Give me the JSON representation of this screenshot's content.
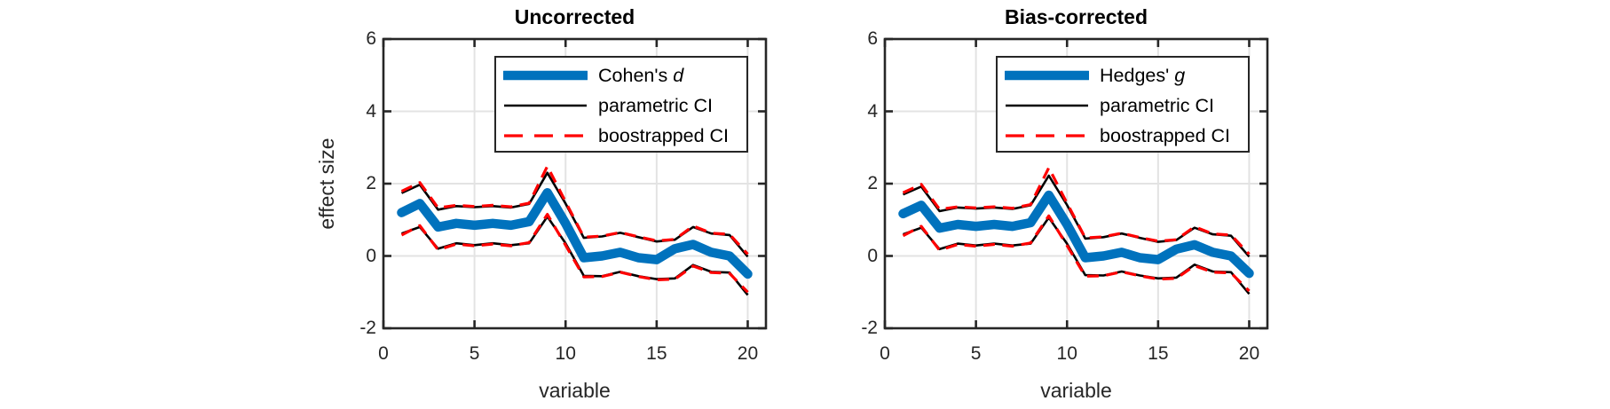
{
  "figure": {
    "colors": {
      "series_main": "#0072BD",
      "series_parametric": "#000000",
      "series_bootstrap": "#FF0000",
      "axis": "#262626",
      "grid": "#E3E3E3",
      "background": "#FFFFFF"
    }
  },
  "chart_data": [
    {
      "type": "line",
      "title": "Uncorrected",
      "xlabel": "variable",
      "ylabel": "effect size",
      "xlim": [
        0,
        21
      ],
      "ylim": [
        -2,
        6
      ],
      "xticks": [
        0,
        5,
        10,
        15,
        20
      ],
      "yticks": [
        -2,
        0,
        2,
        4,
        6
      ],
      "grid": true,
      "legend_position": "top-right-inside",
      "x": [
        1,
        2,
        3,
        4,
        5,
        6,
        7,
        8,
        9,
        10,
        11,
        12,
        13,
        14,
        15,
        16,
        17,
        18,
        19,
        20
      ],
      "series": [
        {
          "name": "Cohen's d",
          "role": "main",
          "values": [
            1.2,
            1.45,
            0.8,
            0.9,
            0.85,
            0.9,
            0.85,
            0.95,
            1.75,
            0.9,
            -0.05,
            0.0,
            0.1,
            -0.05,
            -0.1,
            0.2,
            0.32,
            0.1,
            0.0,
            -0.5
          ]
        },
        {
          "name": "parametric CI upper",
          "role": "param",
          "values": [
            1.74,
            1.97,
            1.28,
            1.38,
            1.35,
            1.38,
            1.34,
            1.44,
            2.3,
            1.45,
            0.5,
            0.54,
            0.64,
            0.52,
            0.4,
            0.45,
            0.8,
            0.62,
            0.58,
            -0.02
          ]
        },
        {
          "name": "parametric CI lower",
          "role": "param",
          "values": [
            0.62,
            0.8,
            0.2,
            0.35,
            0.3,
            0.35,
            0.3,
            0.35,
            1.09,
            0.35,
            -0.55,
            -0.56,
            -0.44,
            -0.56,
            -0.64,
            -0.62,
            -0.25,
            -0.44,
            -0.46,
            -1.08
          ]
        },
        {
          "name": "boostrapped CI upper",
          "role": "boot",
          "values": [
            1.79,
            2.03,
            1.33,
            1.4,
            1.37,
            1.4,
            1.36,
            1.46,
            2.48,
            1.5,
            0.52,
            0.55,
            0.65,
            0.53,
            0.42,
            0.46,
            0.83,
            0.63,
            0.6,
            0.05
          ]
        },
        {
          "name": "boostrapped CI lower",
          "role": "boot",
          "values": [
            0.58,
            0.84,
            0.17,
            0.33,
            0.28,
            0.33,
            0.28,
            0.37,
            1.15,
            0.3,
            -0.58,
            -0.57,
            -0.45,
            -0.57,
            -0.66,
            -0.64,
            -0.28,
            -0.46,
            -0.48,
            -1.0
          ]
        }
      ],
      "legend": [
        {
          "text": "Cohen's ",
          "italic": "d",
          "role": "main"
        },
        {
          "text": "parametric CI",
          "italic": "",
          "role": "param"
        },
        {
          "text": "boostrapped CI",
          "italic": "",
          "role": "boot"
        }
      ]
    },
    {
      "type": "line",
      "title": "Bias-corrected",
      "xlabel": "variable",
      "ylabel": "",
      "xlim": [
        0,
        21
      ],
      "ylim": [
        -2,
        6
      ],
      "xticks": [
        0,
        5,
        10,
        15,
        20
      ],
      "yticks": [
        -2,
        0,
        2,
        4,
        6
      ],
      "grid": true,
      "legend_position": "top-right-inside",
      "x": [
        1,
        2,
        3,
        4,
        5,
        6,
        7,
        8,
        9,
        10,
        11,
        12,
        13,
        14,
        15,
        16,
        17,
        18,
        19,
        20
      ],
      "series": [
        {
          "name": "Hedges' g",
          "role": "main",
          "values": [
            1.17,
            1.4,
            0.77,
            0.87,
            0.82,
            0.87,
            0.82,
            0.92,
            1.68,
            0.87,
            -0.05,
            0.0,
            0.1,
            -0.05,
            -0.1,
            0.19,
            0.31,
            0.1,
            0.0,
            -0.48
          ]
        },
        {
          "name": "parametric CI upper",
          "role": "param",
          "values": [
            1.7,
            1.92,
            1.24,
            1.34,
            1.31,
            1.34,
            1.3,
            1.4,
            2.22,
            1.41,
            0.48,
            0.52,
            0.62,
            0.5,
            0.39,
            0.44,
            0.78,
            0.6,
            0.56,
            -0.02
          ]
        },
        {
          "name": "parametric CI lower",
          "role": "param",
          "values": [
            0.6,
            0.78,
            0.19,
            0.34,
            0.29,
            0.34,
            0.29,
            0.34,
            1.06,
            0.34,
            -0.53,
            -0.54,
            -0.43,
            -0.54,
            -0.62,
            -0.6,
            -0.24,
            -0.43,
            -0.45,
            -1.05
          ]
        },
        {
          "name": "boostrapped CI upper",
          "role": "boot",
          "values": [
            1.75,
            1.98,
            1.29,
            1.36,
            1.33,
            1.36,
            1.32,
            1.42,
            2.44,
            1.46,
            0.5,
            0.53,
            0.63,
            0.51,
            0.41,
            0.45,
            0.81,
            0.61,
            0.58,
            0.05
          ]
        },
        {
          "name": "boostrapped CI lower",
          "role": "boot",
          "values": [
            0.56,
            0.82,
            0.16,
            0.32,
            0.27,
            0.32,
            0.27,
            0.36,
            1.11,
            0.29,
            -0.56,
            -0.55,
            -0.44,
            -0.55,
            -0.64,
            -0.62,
            -0.27,
            -0.45,
            -0.47,
            -0.97
          ]
        }
      ],
      "legend": [
        {
          "text": "Hedges' ",
          "italic": "g",
          "role": "main"
        },
        {
          "text": "parametric CI",
          "italic": "",
          "role": "param"
        },
        {
          "text": "boostrapped CI",
          "italic": "",
          "role": "boot"
        }
      ]
    }
  ]
}
